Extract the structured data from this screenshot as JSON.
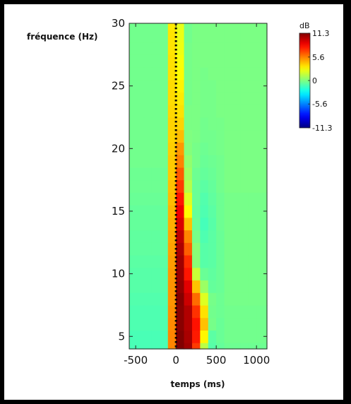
{
  "chart_data": {
    "type": "heatmap",
    "title": "",
    "xlabel": "temps (ms)",
    "ylabel": "fréquence (Hz)",
    "xlim": [
      -580,
      1130
    ],
    "ylim": [
      4,
      30
    ],
    "xticks": [
      -500,
      0,
      500,
      1000
    ],
    "yticks": [
      5,
      10,
      15,
      20,
      25,
      30
    ],
    "xtick_labels": [
      "-500",
      "0",
      "500",
      "1000"
    ],
    "ytick_labels": [
      "5",
      "10",
      "15",
      "20",
      "25",
      "30"
    ],
    "event_marker": {
      "x": 0,
      "style": "dotted",
      "color": "#000000"
    },
    "colorbar": {
      "unit": "dB",
      "min": -11.3,
      "max": 11.3,
      "ticks": [
        11.3,
        5.6,
        0,
        -5.6,
        -11.3
      ],
      "tick_labels": [
        "11.3",
        "5.6",
        "0",
        "-5.6",
        "-11.3"
      ],
      "colormap": "jet",
      "position": "right"
    },
    "time_bins_ms": [
      -550,
      -450,
      -350,
      -250,
      -150,
      -50,
      50,
      150,
      250,
      350,
      450,
      550,
      650,
      750,
      850,
      950,
      1050
    ],
    "freq_bins_hz": [
      4,
      5,
      6,
      7,
      8,
      9,
      10,
      11,
      12,
      13,
      14,
      15,
      16,
      17,
      18,
      19,
      20,
      21,
      22,
      23,
      24,
      25,
      26,
      27,
      28,
      29,
      30
    ],
    "values_db": [
      [
        -1.2,
        -1.2,
        -1.2,
        -1.2,
        -1.2,
        5.5,
        11.3,
        10.6,
        7.2,
        1.3,
        -0.9,
        -0.6,
        -0.4,
        -0.4,
        -0.4,
        -0.4,
        -0.4
      ],
      [
        -1.2,
        -1.2,
        -1.2,
        -1.2,
        -1.2,
        5.5,
        11.3,
        10.4,
        7.9,
        3.0,
        -0.8,
        -0.5,
        -0.3,
        -0.3,
        -0.3,
        -0.3,
        -0.3
      ],
      [
        -1.1,
        -1.1,
        -1.1,
        -1.1,
        -1.1,
        5.4,
        11.1,
        10.2,
        8.1,
        4.2,
        -0.2,
        -0.5,
        -0.3,
        -0.3,
        -0.3,
        -0.3,
        -0.3
      ],
      [
        -1.1,
        -1.1,
        -1.1,
        -1.1,
        -1.1,
        5.3,
        11.1,
        10.2,
        7.4,
        3.5,
        -0.3,
        -0.4,
        -0.3,
        -0.3,
        -0.3,
        -0.3,
        -0.3
      ],
      [
        -1.0,
        -1.0,
        -1.0,
        -1.0,
        -1.0,
        5.2,
        11.2,
        9.6,
        6.1,
        2.1,
        -0.2,
        -0.4,
        -0.2,
        -0.2,
        -0.2,
        -0.2,
        -0.2
      ],
      [
        -0.9,
        -0.9,
        -0.9,
        -0.9,
        -0.9,
        5.2,
        10.9,
        9.1,
        4.2,
        0.6,
        -0.6,
        -0.5,
        -0.2,
        -0.2,
        -0.2,
        -0.2,
        -0.2
      ],
      [
        -0.9,
        -0.9,
        -0.9,
        -0.9,
        -0.9,
        5.1,
        10.7,
        8.0,
        1.6,
        -0.5,
        -0.7,
        -0.5,
        -0.2,
        -0.2,
        -0.2,
        -0.2,
        -0.2
      ],
      [
        -0.8,
        -0.8,
        -0.8,
        -0.8,
        -0.8,
        5.0,
        10.6,
        7.5,
        0.2,
        -0.9,
        -0.8,
        -0.5,
        -0.2,
        -0.2,
        -0.2,
        -0.2,
        -0.2
      ],
      [
        -0.7,
        -0.7,
        -0.7,
        -0.7,
        -0.7,
        4.9,
        10.3,
        6.4,
        0.2,
        -0.9,
        -0.8,
        -0.5,
        -0.2,
        -0.2,
        -0.2,
        -0.2,
        -0.2
      ],
      [
        -0.7,
        -0.7,
        -0.7,
        -0.7,
        -0.7,
        4.8,
        9.9,
        5.5,
        -0.2,
        -1.1,
        -0.8,
        -0.5,
        -0.2,
        -0.2,
        -0.2,
        -0.2,
        -0.2
      ],
      [
        -0.6,
        -0.6,
        -0.6,
        -0.6,
        -0.6,
        4.6,
        9.3,
        4.2,
        -0.5,
        -1.3,
        -0.9,
        -0.4,
        -0.2,
        -0.2,
        -0.2,
        -0.2,
        -0.2
      ],
      [
        -0.6,
        -0.6,
        -0.6,
        -0.6,
        -0.6,
        4.5,
        8.8,
        2.9,
        -0.6,
        -1.1,
        -0.8,
        -0.4,
        -0.2,
        -0.2,
        -0.2,
        -0.2,
        -0.2
      ],
      [
        -0.5,
        -0.5,
        -0.5,
        -0.5,
        -0.5,
        4.3,
        8.0,
        2.1,
        -0.5,
        -1.0,
        -0.7,
        -0.4,
        -0.2,
        -0.2,
        -0.2,
        -0.2,
        -0.2
      ],
      [
        -0.4,
        -0.4,
        -0.4,
        -0.4,
        -0.4,
        4.2,
        7.2,
        1.2,
        -0.5,
        -0.8,
        -0.6,
        -0.3,
        -0.1,
        -0.1,
        -0.1,
        -0.1,
        -0.1
      ],
      [
        -0.4,
        -0.4,
        -0.4,
        -0.4,
        -0.4,
        4.0,
        6.5,
        0.7,
        -0.4,
        -0.6,
        -0.5,
        -0.3,
        -0.1,
        -0.1,
        -0.1,
        -0.1,
        -0.1
      ],
      [
        -0.3,
        -0.3,
        -0.3,
        -0.3,
        -0.3,
        4.0,
        5.6,
        0.4,
        -0.2,
        -0.5,
        -0.4,
        -0.3,
        -0.1,
        -0.1,
        -0.1,
        -0.1,
        -0.1
      ],
      [
        -0.3,
        -0.3,
        -0.3,
        -0.3,
        -0.3,
        3.9,
        5.1,
        0.1,
        -0.2,
        -0.4,
        -0.3,
        -0.2,
        -0.1,
        -0.1,
        -0.1,
        -0.1,
        -0.1
      ],
      [
        -0.3,
        -0.3,
        -0.3,
        -0.3,
        -0.3,
        3.8,
        4.3,
        0.0,
        -0.1,
        -0.3,
        -0.3,
        -0.2,
        -0.1,
        -0.1,
        -0.1,
        -0.1,
        -0.1
      ],
      [
        -0.3,
        -0.3,
        -0.3,
        -0.3,
        -0.3,
        3.8,
        3.8,
        -0.1,
        -0.1,
        -0.3,
        -0.2,
        -0.2,
        -0.1,
        -0.1,
        -0.1,
        -0.1,
        -0.1
      ],
      [
        -0.3,
        -0.3,
        -0.3,
        -0.3,
        -0.3,
        3.7,
        3.5,
        -0.1,
        -0.1,
        -0.2,
        -0.2,
        -0.1,
        -0.1,
        -0.1,
        -0.1,
        -0.1,
        -0.1
      ],
      [
        -0.3,
        -0.3,
        -0.3,
        -0.3,
        -0.3,
        3.6,
        3.3,
        -0.2,
        -0.1,
        -0.2,
        -0.2,
        -0.1,
        -0.1,
        -0.1,
        -0.1,
        -0.1,
        -0.1
      ],
      [
        -0.3,
        -0.3,
        -0.3,
        -0.3,
        -0.3,
        3.6,
        3.1,
        -0.2,
        -0.1,
        -0.2,
        -0.2,
        -0.1,
        -0.1,
        -0.1,
        -0.1,
        -0.1,
        -0.1
      ],
      [
        -0.3,
        -0.3,
        -0.3,
        -0.3,
        -0.3,
        3.5,
        2.9,
        -0.2,
        -0.1,
        -0.2,
        -0.1,
        -0.1,
        -0.1,
        -0.1,
        -0.1,
        -0.1,
        -0.1
      ],
      [
        -0.3,
        -0.3,
        -0.3,
        -0.3,
        -0.3,
        3.5,
        2.7,
        -0.2,
        -0.1,
        -0.1,
        -0.1,
        -0.1,
        -0.1,
        -0.1,
        -0.1,
        -0.1,
        -0.1
      ],
      [
        -0.3,
        -0.3,
        -0.3,
        -0.3,
        -0.3,
        3.4,
        2.5,
        -0.2,
        -0.1,
        -0.1,
        -0.1,
        -0.1,
        -0.1,
        -0.1,
        -0.1,
        -0.1,
        -0.1
      ],
      [
        -0.3,
        -0.3,
        -0.3,
        -0.3,
        -0.3,
        3.4,
        2.4,
        -0.3,
        -0.1,
        -0.1,
        -0.1,
        -0.1,
        -0.1,
        -0.1,
        -0.1,
        -0.1,
        -0.1
      ],
      [
        -0.3,
        -0.3,
        -0.3,
        -0.3,
        -0.3,
        3.3,
        2.3,
        -0.3,
        -0.1,
        -0.1,
        -0.1,
        -0.1,
        -0.1,
        -0.1,
        -0.1,
        -0.1,
        -0.1
      ]
    ]
  }
}
